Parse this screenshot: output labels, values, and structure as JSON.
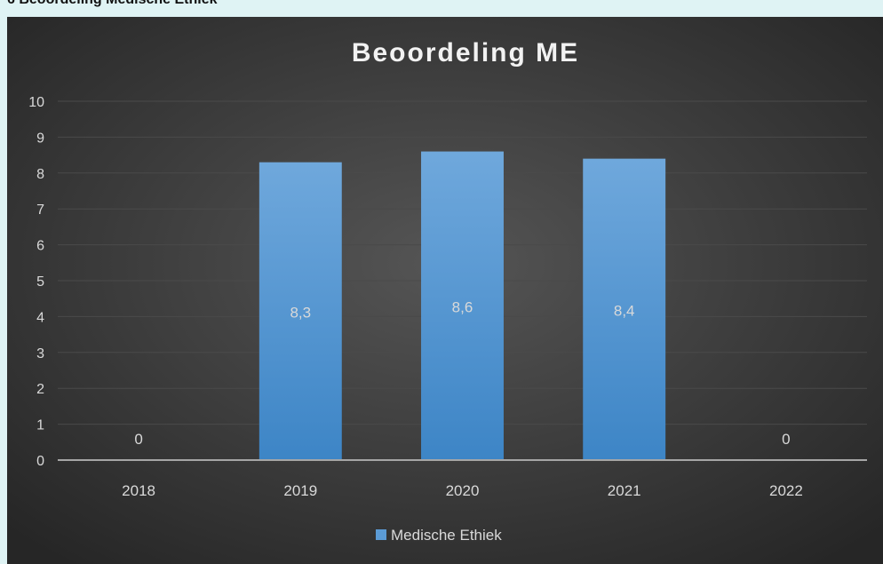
{
  "document": {
    "section_heading": "6 Beoordeling Medische Ethiek"
  },
  "chart_data": {
    "type": "bar",
    "title": "Beoordeling ME",
    "categories": [
      "2018",
      "2019",
      "2020",
      "2021",
      "2022"
    ],
    "series": [
      {
        "name": "Medische Ethiek",
        "values": [
          0,
          8.3,
          8.6,
          8.4,
          0
        ],
        "data_labels": [
          "0",
          "8,3",
          "8,6",
          "8,4",
          "0"
        ],
        "color": "#5b9bd5"
      }
    ],
    "ylim": [
      0,
      10
    ],
    "yticks": [
      "0",
      "1",
      "2",
      "3",
      "4",
      "5",
      "6",
      "7",
      "8",
      "9",
      "10"
    ],
    "grid": true,
    "legend": "bottom",
    "background": "#333333",
    "text_color": "#d9d9d9",
    "title_color": "#f2f2f2",
    "gridline_color": "#4a4a4a",
    "axis_color": "#a6a6a6"
  }
}
